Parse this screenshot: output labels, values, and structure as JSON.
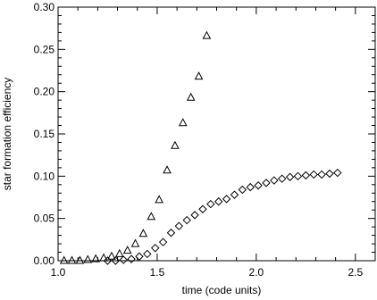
{
  "chart_data": {
    "type": "scatter",
    "title": "",
    "xlabel": "time (code units)",
    "ylabel": "star formation efficiency",
    "xlim": [
      1.0,
      2.6
    ],
    "ylim": [
      0.0,
      0.3
    ],
    "xticks": [
      1.0,
      1.5,
      2.0,
      2.5
    ],
    "xtick_labels": [
      "1.0",
      "1.5",
      "2.0",
      "2.5"
    ],
    "xminor": [
      1.1,
      1.2,
      1.3,
      1.4,
      1.6,
      1.7,
      1.8,
      1.9,
      2.1,
      2.2,
      2.3,
      2.4
    ],
    "yticks": [
      0.0,
      0.05,
      0.1,
      0.15,
      0.2,
      0.25,
      0.3
    ],
    "ytick_labels": [
      "0.00",
      "0.05",
      "0.10",
      "0.15",
      "0.20",
      "0.25",
      "0.30"
    ],
    "yminor": [
      0.01,
      0.02,
      0.03,
      0.04,
      0.06,
      0.07,
      0.08,
      0.09,
      0.11,
      0.12,
      0.13,
      0.14,
      0.16,
      0.17,
      0.18,
      0.19,
      0.21,
      0.22,
      0.23,
      0.24,
      0.26,
      0.27,
      0.28,
      0.29
    ],
    "grid": false,
    "series": [
      {
        "marker": "triangle",
        "color": "#000000",
        "x": [
          1.03,
          1.07,
          1.11,
          1.15,
          1.19,
          1.23,
          1.27,
          1.31,
          1.35,
          1.39,
          1.43,
          1.47,
          1.51,
          1.55,
          1.59,
          1.63,
          1.67,
          1.71,
          1.75
        ],
        "y": [
          0.0,
          0.0,
          0.0,
          0.001,
          0.002,
          0.003,
          0.005,
          0.008,
          0.012,
          0.02,
          0.032,
          0.052,
          0.072,
          0.107,
          0.136,
          0.163,
          0.193,
          0.218,
          0.266
        ]
      },
      {
        "marker": "diamond",
        "color": "#000000",
        "x": [
          1.25,
          1.29,
          1.33,
          1.37,
          1.41,
          1.45,
          1.49,
          1.53,
          1.57,
          1.61,
          1.65,
          1.69,
          1.73,
          1.77,
          1.81,
          1.85,
          1.89,
          1.93,
          1.97,
          2.01,
          2.05,
          2.09,
          2.13,
          2.17,
          2.21,
          2.25,
          2.29,
          2.33,
          2.37,
          2.41
        ],
        "y": [
          0.0,
          0.0,
          0.001,
          0.002,
          0.005,
          0.008,
          0.015,
          0.022,
          0.033,
          0.041,
          0.048,
          0.054,
          0.061,
          0.067,
          0.07,
          0.073,
          0.078,
          0.084,
          0.087,
          0.089,
          0.092,
          0.095,
          0.097,
          0.099,
          0.1,
          0.101,
          0.102,
          0.102,
          0.103,
          0.104
        ]
      }
    ]
  }
}
